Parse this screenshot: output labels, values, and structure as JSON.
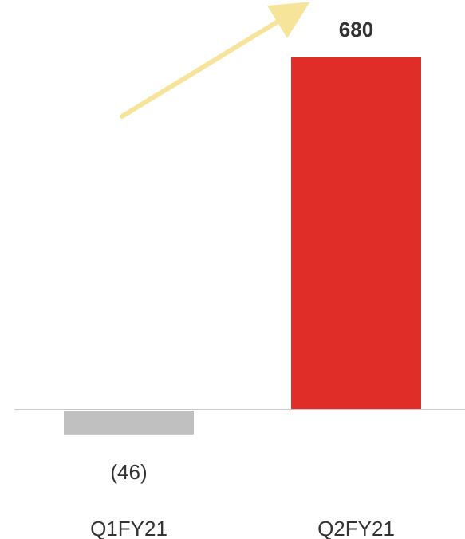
{
  "chart_data": {
    "type": "bar",
    "categories": [
      "Q1FY21",
      "Q2FY21"
    ],
    "values": [
      -46,
      680
    ],
    "data_labels": [
      "(46)",
      "680"
    ],
    "title": "",
    "xlabel": "",
    "ylabel": "",
    "ylim": [
      -60,
      760
    ],
    "grid": false,
    "legend": "none",
    "colors": {
      "negative_bar": "#c0c0c0",
      "positive_bar": "#e02d27",
      "axis": "#cccccc",
      "trend_arrow": "#f6e49a"
    },
    "annotations": [
      {
        "type": "trend-arrow",
        "direction": "up",
        "from_category": "Q1FY21",
        "to_category": "Q2FY21"
      }
    ]
  }
}
